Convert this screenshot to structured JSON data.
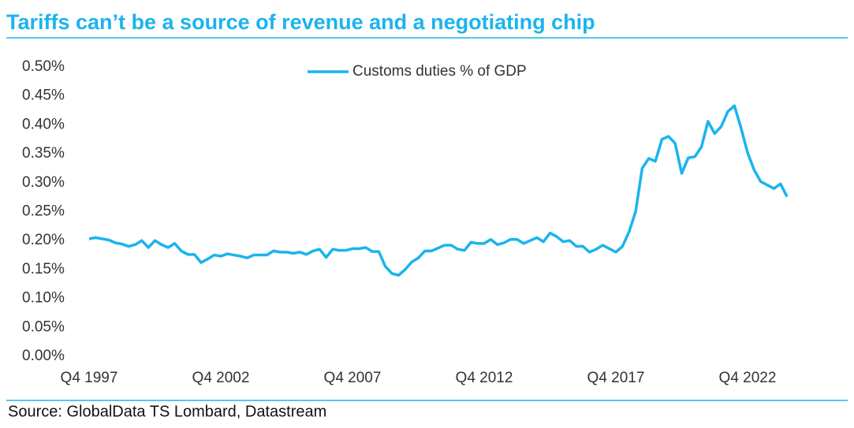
{
  "chart_data": {
    "type": "line",
    "title": "Tariffs can’t be a source of revenue and a negotiating chip",
    "source": "Source: GlobalData TS Lombard, Datastream",
    "categories": [
      "Q4 1997",
      null,
      null,
      null,
      null,
      null,
      null,
      null,
      null,
      null,
      null,
      null,
      null,
      null,
      null,
      null,
      null,
      null,
      null,
      null,
      "Q4 2002",
      null,
      null,
      null,
      null,
      null,
      null,
      null,
      null,
      null,
      null,
      null,
      null,
      null,
      null,
      null,
      null,
      null,
      null,
      null,
      "Q4 2007",
      null,
      null,
      null,
      null,
      null,
      null,
      null,
      null,
      null,
      null,
      null,
      null,
      null,
      null,
      null,
      null,
      null,
      null,
      null,
      "Q4 2012",
      null,
      null,
      null,
      null,
      null,
      null,
      null,
      null,
      null,
      null,
      null,
      null,
      null,
      null,
      null,
      null,
      null,
      null,
      null,
      "Q4 2017",
      null,
      null,
      null,
      null,
      null,
      null,
      null,
      null,
      null,
      null,
      null,
      null,
      null,
      null,
      null,
      null,
      null,
      null,
      null,
      "Q4 2022",
      null,
      null,
      null,
      null,
      null,
      null
    ],
    "series": [
      {
        "name": "Customs duties % of GDP",
        "color": "#1ab4ee",
        "values": [
          0.203,
          0.205,
          0.203,
          0.201,
          0.196,
          0.194,
          0.19,
          0.193,
          0.2,
          0.188,
          0.2,
          0.193,
          0.188,
          0.195,
          0.182,
          0.176,
          0.176,
          0.162,
          0.168,
          0.175,
          0.173,
          0.177,
          0.175,
          0.173,
          0.17,
          0.175,
          0.175,
          0.175,
          0.182,
          0.18,
          0.18,
          0.178,
          0.18,
          0.176,
          0.182,
          0.185,
          0.171,
          0.185,
          0.183,
          0.183,
          0.186,
          0.186,
          0.188,
          0.181,
          0.181,
          0.155,
          0.143,
          0.14,
          0.15,
          0.163,
          0.17,
          0.182,
          0.182,
          0.187,
          0.192,
          0.192,
          0.185,
          0.183,
          0.197,
          0.195,
          0.195,
          0.202,
          0.193,
          0.196,
          0.202,
          0.202,
          0.195,
          0.2,
          0.205,
          0.198,
          0.213,
          0.207,
          0.198,
          0.2,
          0.19,
          0.19,
          0.18,
          0.185,
          0.192,
          0.186,
          0.18,
          0.19,
          0.215,
          0.25,
          0.325,
          0.342,
          0.337,
          0.375,
          0.38,
          0.368,
          0.316,
          0.343,
          0.345,
          0.362,
          0.406,
          0.385,
          0.397,
          0.423,
          0.433,
          0.395,
          0.352,
          0.322,
          0.302,
          0.296,
          0.29,
          0.298,
          0.276
        ]
      }
    ],
    "ylim": [
      0,
      0.5
    ],
    "yticks": [
      {
        "value": 0,
        "label": "0.00%"
      },
      {
        "value": 0.05,
        "label": "0.05%"
      },
      {
        "value": 0.1,
        "label": "0.10%"
      },
      {
        "value": 0.15,
        "label": "0.15%"
      },
      {
        "value": 0.2,
        "label": "0.20%"
      },
      {
        "value": 0.25,
        "label": "0.25%"
      },
      {
        "value": 0.3,
        "label": "0.30%"
      },
      {
        "value": 0.35,
        "label": "0.35%"
      },
      {
        "value": 0.4,
        "label": "0.40%"
      },
      {
        "value": 0.45,
        "label": "0.45%"
      },
      {
        "value": 0.5,
        "label": "0.50%"
      }
    ],
    "grid": false,
    "legend": "top"
  }
}
